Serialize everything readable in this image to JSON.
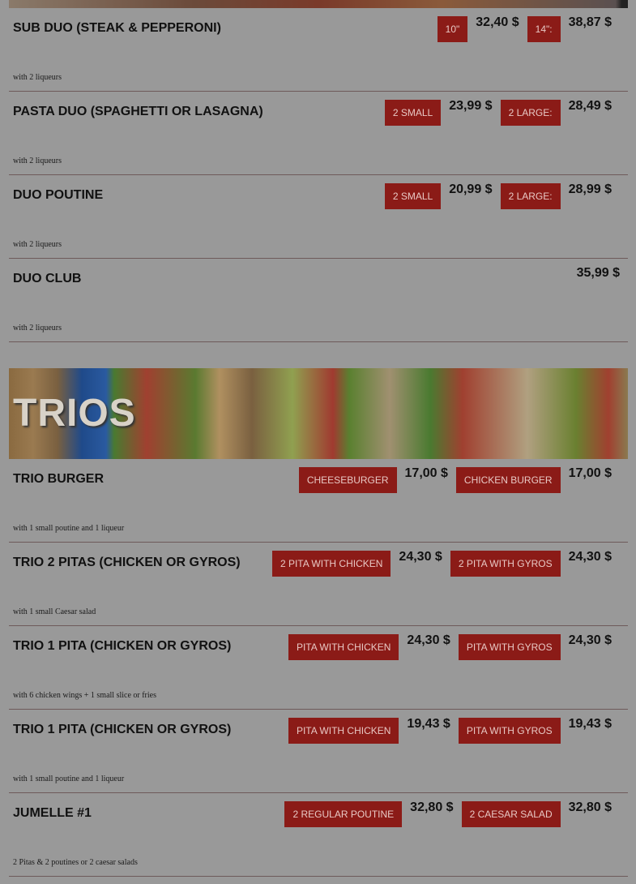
{
  "colors": {
    "button_bg": "#8b1b17",
    "button_text": "#e8c8c4",
    "background": "#999999"
  },
  "duos": [
    {
      "title": "SUB DUO (STEAK & PEPPERONI)",
      "note": "with 2 liqueurs",
      "options": [
        {
          "label": "10\"",
          "price": "32,40 $"
        },
        {
          "label": "14\":",
          "price": "38,87 $"
        }
      ]
    },
    {
      "title": "PASTA DUO (SPAGHETTI OR LASAGNA)",
      "note": "with 2 liqueurs",
      "options": [
        {
          "label": "2 SMALL",
          "price": "23,99 $"
        },
        {
          "label": "2 LARGE:",
          "price": "28,49 $"
        }
      ]
    },
    {
      "title": "DUO POUTINE",
      "note": "with 2 liqueurs",
      "options": [
        {
          "label": "2 SMALL",
          "price": "20,99 $"
        },
        {
          "label": "2 LARGE:",
          "price": "28,99 $"
        }
      ]
    },
    {
      "title": "DUO CLUB",
      "note": "with 2 liqueurs",
      "price": "35,99 $"
    }
  ],
  "trios_banner": {
    "title": "TRIOS"
  },
  "trios": [
    {
      "title": "TRIO BURGER",
      "note": "with 1 small poutine and 1 liqueur",
      "options": [
        {
          "label": "CHEESEBURGER",
          "price": "17,00 $"
        },
        {
          "label": "CHICKEN BURGER",
          "price": "17,00 $"
        }
      ]
    },
    {
      "title": "TRIO 2 PITAS (CHICKEN OR GYROS)",
      "note": "with 1 small Caesar salad",
      "options": [
        {
          "label": "2 PITA WITH CHICKEN",
          "price": "24,30 $"
        },
        {
          "label": "2 PITA WITH GYROS",
          "price": "24,30 $"
        }
      ]
    },
    {
      "title": "TRIO 1 PITA (CHICKEN OR GYROS)",
      "note": "with 6 chicken wings + 1 small slice or fries",
      "options": [
        {
          "label": "PITA WITH CHICKEN",
          "price": "24,30 $"
        },
        {
          "label": "PITA WITH GYROS",
          "price": "24,30 $"
        }
      ]
    },
    {
      "title": "TRIO 1 PITA (CHICKEN OR GYROS)",
      "note": "with 1 small poutine and 1 liqueur",
      "options": [
        {
          "label": "PITA WITH CHICKEN",
          "price": "19,43 $"
        },
        {
          "label": "PITA WITH GYROS",
          "price": "19,43 $"
        }
      ]
    },
    {
      "title": "JUMELLE #1",
      "note": "2 Pitas & 2 poutines or 2 caesar salads",
      "options": [
        {
          "label": "2 REGULAR POUTINE",
          "price": "32,80 $"
        },
        {
          "label": "2 CAESAR SALAD",
          "price": "32,80 $"
        }
      ]
    }
  ]
}
